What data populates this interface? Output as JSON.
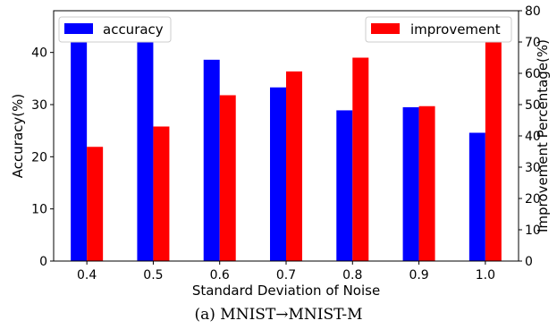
{
  "chart_data": {
    "type": "bar",
    "categories": [
      "0.4",
      "0.5",
      "0.6",
      "0.7",
      "0.8",
      "0.9",
      "1.0"
    ],
    "series": [
      {
        "name": "accuracy",
        "axis": "left",
        "color": "#0000ff",
        "values": [
          45.8,
          42.6,
          38.6,
          33.3,
          28.9,
          29.5,
          24.6
        ]
      },
      {
        "name": "improvement",
        "axis": "right",
        "color": "#ff0000",
        "values": [
          36.5,
          43.0,
          53.0,
          60.6,
          65.0,
          49.5,
          76.5
        ]
      }
    ],
    "xlabel": "Standard Deviation of Noise",
    "ylabel_left": "Accuracy(%)",
    "ylabel_right": "Improvement Percentage(%)",
    "ylim_left": [
      0,
      48
    ],
    "ylim_right": [
      0,
      80
    ],
    "yticks_left": [
      "0",
      "10",
      "20",
      "30",
      "40"
    ],
    "yticks_right": [
      "0",
      "10",
      "20",
      "30",
      "40",
      "50",
      "60",
      "70",
      "80"
    ],
    "grid": false,
    "legend": [
      {
        "label": "accuracy",
        "placement": "top-left"
      },
      {
        "label": "improvement",
        "placement": "top-right"
      }
    ]
  },
  "caption": "(a)  MNIST→MNIST-M"
}
